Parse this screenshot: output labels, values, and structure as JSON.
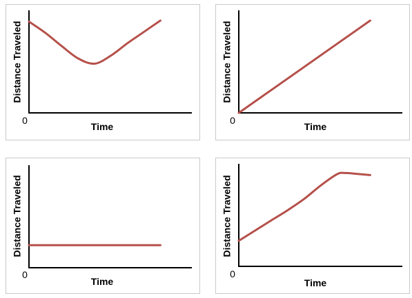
{
  "style": {
    "line_color": "#b5504a",
    "axis_color": "#000000",
    "panel_border": "#c9c9c9"
  },
  "chart_data": [
    {
      "type": "line",
      "title": "",
      "xlabel": "Time",
      "ylabel": "Distance Traveled",
      "origin_label": "0",
      "xlim": [
        0,
        10
      ],
      "ylim": [
        0,
        10
      ],
      "grid": false,
      "legend": "none",
      "series": [
        {
          "x": [
            0,
            1,
            2,
            3,
            4,
            5,
            6,
            7,
            8
          ],
          "y": [
            8.9,
            7.8,
            6.5,
            5.3,
            4.8,
            5.6,
            6.8,
            7.9,
            9.0
          ]
        }
      ]
    },
    {
      "type": "line",
      "title": "",
      "xlabel": "Time",
      "ylabel": "Distance Traveled",
      "origin_label": "0",
      "xlim": [
        0,
        10
      ],
      "ylim": [
        0,
        10
      ],
      "grid": false,
      "legend": "none",
      "series": [
        {
          "x": [
            0,
            8
          ],
          "y": [
            0,
            9.0
          ]
        }
      ]
    },
    {
      "type": "line",
      "title": "",
      "xlabel": "Time",
      "ylabel": "Distance Traveled",
      "origin_label": "0",
      "xlim": [
        0,
        10
      ],
      "ylim": [
        0,
        10
      ],
      "grid": false,
      "legend": "none",
      "series": [
        {
          "x": [
            0,
            8
          ],
          "y": [
            2.2,
            2.2
          ]
        }
      ]
    },
    {
      "type": "line",
      "title": "",
      "xlabel": "Time",
      "ylabel": "Distance Traveled",
      "origin_label": "0",
      "xlim": [
        0,
        10
      ],
      "ylim": [
        0,
        10
      ],
      "grid": false,
      "legend": "none",
      "series": [
        {
          "x": [
            0,
            1,
            2,
            3,
            4,
            5,
            6,
            6.5,
            7,
            8
          ],
          "y": [
            2.5,
            3.5,
            4.5,
            5.5,
            6.6,
            7.9,
            9.0,
            9.1,
            9.05,
            8.9
          ]
        }
      ]
    }
  ]
}
